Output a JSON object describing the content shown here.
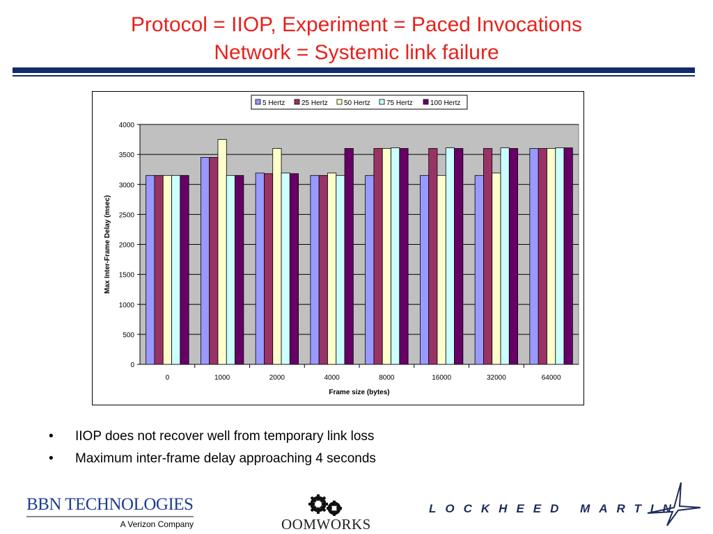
{
  "slide": {
    "title_line1": "Protocol = IIOP, Experiment = Paced Invocations",
    "title_line2": "Network = Systemic link failure",
    "bullets": [
      "IIOP does not recover well from temporary link loss",
      "Maximum inter-frame delay approaching 4 seconds"
    ],
    "bullet_symbol": "•"
  },
  "logos": {
    "bbn_name": "BBN TECHNOLOGIES",
    "bbn_tagline": "A Verizon Company",
    "oomworks_name": "OOMWORKS",
    "lockheed_name": "LOCKHEED MARTIN"
  },
  "colors": {
    "title": "#e8211c",
    "rule": "#132a6b",
    "plot_area": "#c0c0c0",
    "series": [
      "#9999ff",
      "#993366",
      "#ffffcc",
      "#ccffff",
      "#660066"
    ]
  },
  "chart_data": {
    "type": "bar",
    "title": "",
    "xlabel": "Frame size (bytes)",
    "ylabel": "Max Inter-Frame Delay (msec)",
    "ylim": [
      0,
      4000
    ],
    "yticks": [
      0,
      500,
      1000,
      1500,
      2000,
      2500,
      3000,
      3500,
      4000
    ],
    "categories": [
      "0",
      "1000",
      "2000",
      "4000",
      "8000",
      "16000",
      "32000",
      "64000"
    ],
    "grid": true,
    "legend_position": "top",
    "series": [
      {
        "name": "5 Hertz",
        "values": [
          3150,
          3450,
          3190,
          3150,
          3150,
          3150,
          3150,
          3600
        ]
      },
      {
        "name": "25 Hertz",
        "values": [
          3150,
          3450,
          3180,
          3150,
          3600,
          3600,
          3600,
          3600
        ]
      },
      {
        "name": "50 Hertz",
        "values": [
          3150,
          3750,
          3600,
          3190,
          3600,
          3150,
          3190,
          3600
        ]
      },
      {
        "name": "75 Hertz",
        "values": [
          3150,
          3150,
          3190,
          3150,
          3610,
          3610,
          3610,
          3610
        ]
      },
      {
        "name": "100 Hertz",
        "values": [
          3150,
          3150,
          3180,
          3600,
          3600,
          3600,
          3600,
          3610
        ]
      }
    ]
  }
}
